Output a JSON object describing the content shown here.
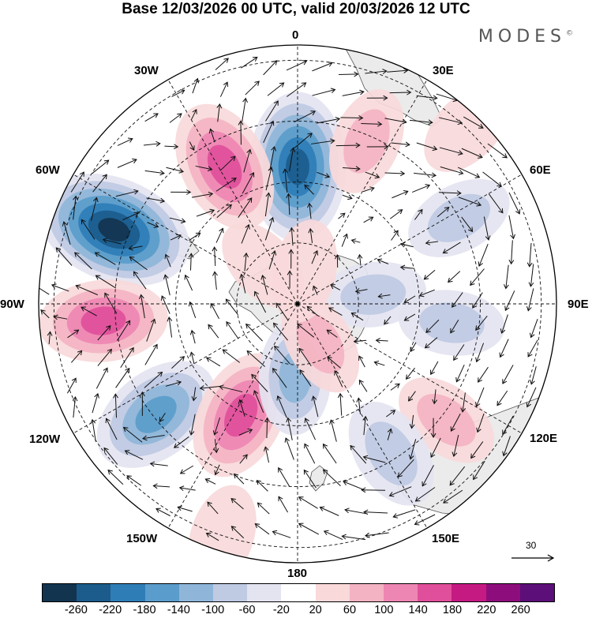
{
  "title": "Base 12/03/2026 00 UTC, valid 20/03/2026 12 UTC",
  "brand": "MODES",
  "brand_mark": "©",
  "longitude_labels": {
    "lon_0": "0",
    "lon_30e": "30E",
    "lon_60e": "60E",
    "lon_90e": "90E",
    "lon_120e": "120E",
    "lon_150e": "150E",
    "lon_180": "180",
    "lon_150w": "150W",
    "lon_120w": "120W",
    "lon_90w": "90W",
    "lon_60w": "60W",
    "lon_30w": "30W"
  },
  "vector_scale": "30",
  "colorbar": {
    "colors": [
      "#12344f",
      "#1b5c8c",
      "#2f7db7",
      "#5a9ccb",
      "#8fb6d9",
      "#bfcae3",
      "#e4e4f1",
      "#ffffff",
      "#f9d9da",
      "#f4b3c2",
      "#ee86b3",
      "#e04f9b",
      "#c51a82",
      "#8e0d7c",
      "#5c0f78"
    ],
    "ticks": [
      "-260",
      "-220",
      "-180",
      "-140",
      "-100",
      "-60",
      "-20",
      "20",
      "60",
      "100",
      "140",
      "180",
      "220",
      "260"
    ]
  },
  "anomaly_centers": [
    {
      "lon": 0,
      "colat": 45,
      "value": -230
    },
    {
      "lon": -28,
      "colat": 51,
      "value": 170
    },
    {
      "lon": -68,
      "colat": 65,
      "value": -260
    },
    {
      "lon": -95,
      "colat": 64,
      "value": 150
    },
    {
      "lon": -128,
      "colat": 59,
      "value": -170
    },
    {
      "lon": -153,
      "colat": 41,
      "value": 160
    },
    {
      "lon": -178,
      "colat": 24,
      "value": -100
    },
    {
      "lon": 23,
      "colat": 58,
      "value": 70
    },
    {
      "lon": 62,
      "colat": 60,
      "value": -70
    },
    {
      "lon": 97,
      "colat": 51,
      "value": -60
    },
    {
      "lon": 128,
      "colat": 62,
      "value": 70
    },
    {
      "lon": 148,
      "colat": 58,
      "value": -90
    },
    {
      "lon": -162,
      "colat": 80,
      "value": 50
    },
    {
      "lon": 44,
      "colat": 80,
      "value": 50
    },
    {
      "lon": -42,
      "colat": 17,
      "value": 40
    },
    {
      "lon": 83,
      "colat": 25,
      "value": -60
    },
    {
      "lon": 150,
      "colat": 15,
      "value": 60
    },
    {
      "lon": 12,
      "colat": 11,
      "value": 50
    }
  ],
  "vortices": [
    {
      "lon": 0,
      "colat": 45,
      "sense": 1
    },
    {
      "lon": -28,
      "colat": 51,
      "sense": -1
    },
    {
      "lon": -68,
      "colat": 65,
      "sense": 1
    },
    {
      "lon": -95,
      "colat": 64,
      "sense": -1
    },
    {
      "lon": -128,
      "colat": 59,
      "sense": 1
    },
    {
      "lon": -153,
      "colat": 41,
      "sense": -1
    },
    {
      "lon": 148,
      "colat": 58,
      "sense": 1
    },
    {
      "lon": 62,
      "colat": 60,
      "sense": 1
    }
  ]
}
